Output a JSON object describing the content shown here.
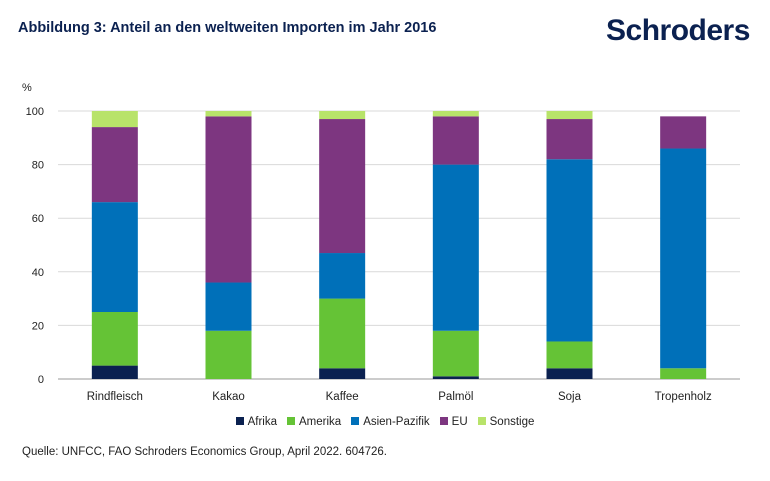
{
  "header": {
    "title": "Abbildung 3: Anteil an den weltweiten Importen im Jahr 2016",
    "logo": "Schroders"
  },
  "source": "Quelle: UNFCC, FAO Schroders Economics Group, April 2022. 604726.",
  "colors": {
    "Afrika": "#0b2150",
    "Amerika": "#65c336",
    "Asien-Pazifik": "#0070b9",
    "EU": "#7d3680",
    "Sonstige": "#b8e36a"
  },
  "chart_data": {
    "type": "bar",
    "stacked": true,
    "ylabel": "%",
    "ylim": [
      0,
      100
    ],
    "yticks": [
      0,
      20,
      40,
      60,
      80,
      100
    ],
    "grid": true,
    "legend_position": "bottom",
    "categories": [
      "Rindfleisch",
      "Kakao",
      "Kaffee",
      "Palmöl",
      "Soja",
      "Tropenholz"
    ],
    "series": [
      {
        "name": "Afrika",
        "values": [
          5,
          0,
          4,
          1,
          4,
          0
        ]
      },
      {
        "name": "Amerika",
        "values": [
          20,
          18,
          26,
          17,
          10,
          4
        ]
      },
      {
        "name": "Asien-Pazifik",
        "values": [
          41,
          18,
          17,
          62,
          68,
          82
        ]
      },
      {
        "name": "EU",
        "values": [
          28,
          62,
          50,
          18,
          15,
          12
        ]
      },
      {
        "name": "Sonstige",
        "values": [
          6,
          2,
          3,
          2,
          3,
          0
        ]
      }
    ]
  }
}
